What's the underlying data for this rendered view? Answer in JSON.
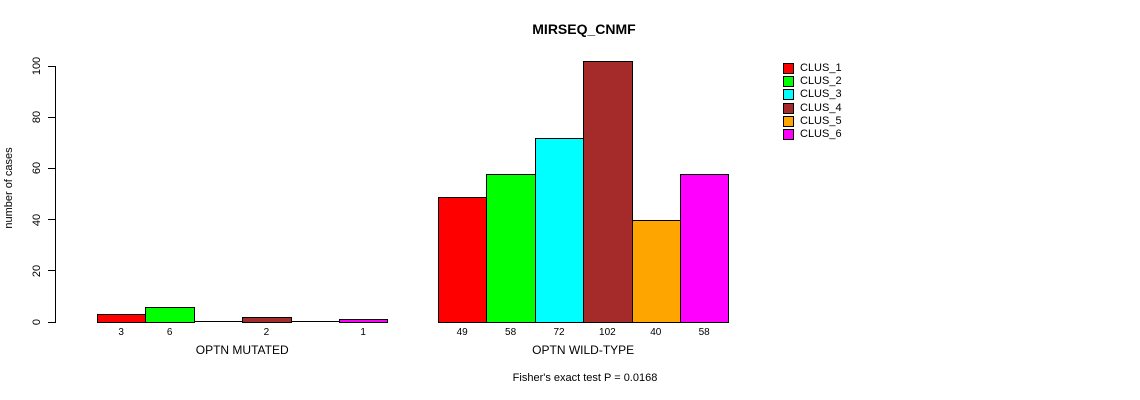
{
  "chart_data": {
    "type": "bar",
    "title": "MIRSEQ_CNMF",
    "ylabel": "number of cases",
    "ylim": [
      0,
      100
    ],
    "yticks": [
      0,
      20,
      40,
      60,
      80,
      100
    ],
    "categories": [
      "OPTN MUTATED",
      "OPTN WILD-TYPE"
    ],
    "series": [
      {
        "name": "CLUS_1",
        "color": "#FF0000",
        "values": [
          3,
          49
        ]
      },
      {
        "name": "CLUS_2",
        "color": "#00FF00",
        "values": [
          6,
          58
        ]
      },
      {
        "name": "CLUS_3",
        "color": "#00FFFF",
        "values": [
          0,
          72
        ]
      },
      {
        "name": "CLUS_4",
        "color": "#A52A2A",
        "values": [
          2,
          102
        ]
      },
      {
        "name": "CLUS_5",
        "color": "#FFA500",
        "values": [
          0,
          40
        ]
      },
      {
        "name": "CLUS_6",
        "color": "#FF00FF",
        "values": [
          1,
          58
        ]
      }
    ],
    "bar_value_labels": true,
    "legend_position": "right",
    "grid": false,
    "annotation": "Fisher's exact test P = 0.0168"
  }
}
